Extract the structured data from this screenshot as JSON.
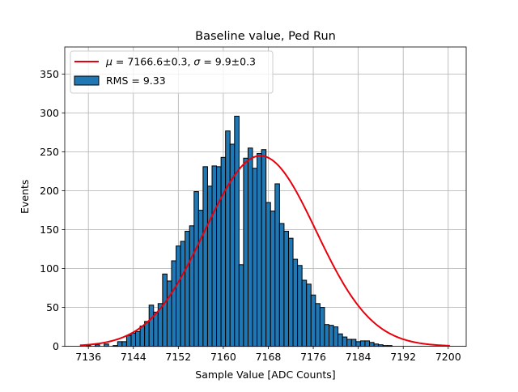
{
  "chart_data": {
    "type": "bar",
    "title": "Baseline value, Ped Run",
    "xlabel": "Sample Value [ADC Counts]",
    "ylabel": "Events",
    "xlim": [
      7131.8,
      7203.2
    ],
    "ylim": [
      0,
      385
    ],
    "xticks": [
      7136,
      7144,
      7152,
      7160,
      7168,
      7176,
      7184,
      7192,
      7200
    ],
    "yticks": [
      0,
      50,
      100,
      150,
      200,
      250,
      300,
      350
    ],
    "grid": true,
    "legend_position": "top-left",
    "histogram": {
      "name": "RMS = 9.33",
      "bin_width": 0.8,
      "bin_start": 7134.8,
      "values": [
        0,
        1,
        0,
        2,
        0,
        3,
        0,
        1,
        6,
        6,
        14,
        17,
        19,
        26,
        32,
        53,
        44,
        55,
        93,
        84,
        110,
        129,
        135,
        148,
        155,
        199,
        175,
        231,
        206,
        232,
        231,
        243,
        277,
        260,
        296,
        105,
        242,
        255,
        229,
        248,
        253,
        185,
        174,
        209,
        158,
        148,
        139,
        112,
        104,
        85,
        80,
        66,
        55,
        50,
        28,
        27,
        25,
        16,
        12,
        9,
        9,
        6,
        7,
        7,
        5,
        3,
        2,
        1,
        1,
        0,
        0,
        0
      ],
      "color": "#1f77b4",
      "edge_color": "#000000"
    },
    "fit": {
      "name": "$\\mu=7166.6\\pm0.3$, $\\sigma=9.9\\pm0.3$",
      "label_mu": "μ",
      "label_mu_value": " = 7166.6±0.3, ",
      "label_sigma": "σ",
      "label_sigma_value": " = 9.9±0.3",
      "mu": 7166.6,
      "sigma": 9.9,
      "amplitude": 245,
      "x_range": [
        7134.5,
        7200.3
      ],
      "color": "#e8000b"
    }
  }
}
